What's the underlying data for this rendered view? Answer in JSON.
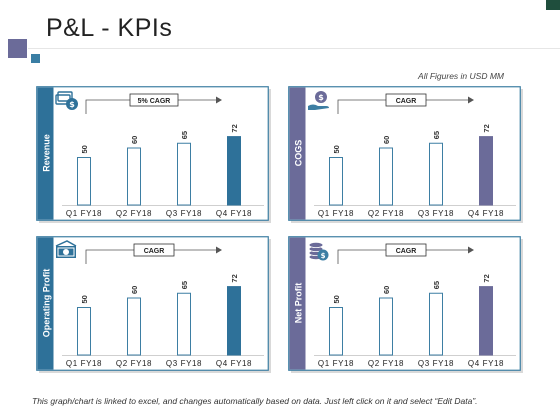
{
  "title": "P&L - KPIs",
  "note": "All Figures in USD MM",
  "footnote": "This graph/chart is linked to excel, and changes automatically based on data. Just left click on it and select “Edit Data”.",
  "colors": {
    "teal": "#2e7199",
    "purple": "#6b6b99",
    "outline": "#3d7ea3"
  },
  "chart_data": [
    {
      "type": "bar",
      "panel_label": "Revenue",
      "badge": "5% CAGR",
      "icon": "money-bag-icon",
      "accent": "#2e7199",
      "categories": [
        "Q1 FY18",
        "Q2 FY18",
        "Q3 FY18",
        "Q4 FY18"
      ],
      "values": [
        50,
        60,
        65,
        72
      ],
      "highlight_index": 3,
      "ylim": [
        0,
        100
      ]
    },
    {
      "type": "bar",
      "panel_label": "COGS",
      "badge": "CAGR",
      "icon": "hand-coin-icon",
      "accent": "#6b6b99",
      "categories": [
        "Q1 FY18",
        "Q2 FY18",
        "Q3 FY18",
        "Q4 FY18"
      ],
      "values": [
        50,
        60,
        65,
        72
      ],
      "highlight_index": 3,
      "ylim": [
        0,
        100
      ]
    },
    {
      "type": "bar",
      "panel_label": "Operating Profit",
      "badge": "CAGR",
      "icon": "cash-note-icon",
      "accent": "#2e7199",
      "categories": [
        "Q1 FY18",
        "Q2 FY18",
        "Q3 FY18",
        "Q4 FY18"
      ],
      "values": [
        50,
        60,
        65,
        72
      ],
      "highlight_index": 3,
      "ylim": [
        0,
        100
      ]
    },
    {
      "type": "bar",
      "panel_label": "Net Profit",
      "badge": "CAGR",
      "icon": "coin-stack-icon",
      "accent": "#6b6b99",
      "categories": [
        "Q1 FY18",
        "Q2 FY18",
        "Q3 FY18",
        "Q4 FY18"
      ],
      "values": [
        50,
        60,
        65,
        72
      ],
      "highlight_index": 3,
      "ylim": [
        0,
        100
      ]
    }
  ]
}
